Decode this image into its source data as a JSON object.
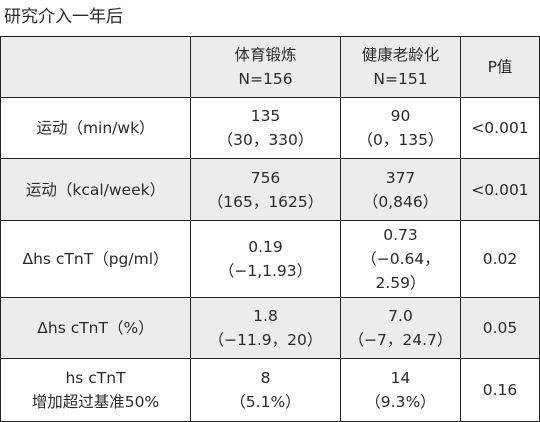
{
  "title": "研究介入一年后",
  "table": {
    "header": [
      [
        "体育锻炼",
        "N=156"
      ],
      [
        "健康老龄化",
        "N=151"
      ],
      [
        "P值"
      ]
    ],
    "rows": [
      [
        [
          "运动（min/wk）"
        ],
        [
          "135",
          "（30，330）"
        ],
        [
          "90",
          "（0，135）"
        ],
        [
          "<0.001"
        ]
      ],
      [
        [
          "运动（kcal/week）"
        ],
        [
          "756",
          "（165，1625）"
        ],
        [
          "377",
          "（0,846）"
        ],
        [
          "<0.001"
        ]
      ],
      [
        [
          "Δhs cTnT（pg/ml）"
        ],
        [
          "0.19",
          "（−1,1.93）"
        ],
        [
          "0.73",
          "（−0.64，",
          "2.59）"
        ],
        [
          "0.02"
        ]
      ],
      [
        [
          "Δhs cTnT（%）"
        ],
        [
          "1.8",
          "（−11.9，20）"
        ],
        [
          "7.0",
          "（−7，24.7）"
        ],
        [
          "0.05"
        ]
      ],
      [
        [
          "hs cTnT",
          "增加超过基准50%"
        ],
        [
          "8",
          "（5.1%）"
        ],
        [
          "14",
          "（9.3%）"
        ],
        [
          "0.16"
        ]
      ]
    ]
  }
}
